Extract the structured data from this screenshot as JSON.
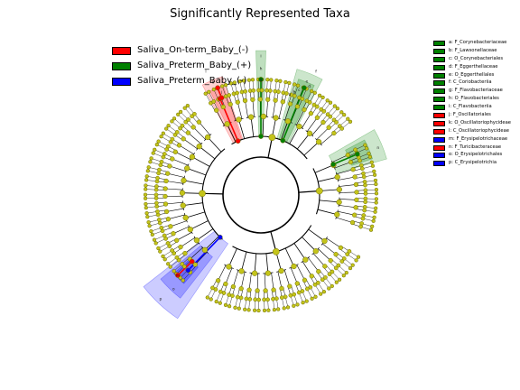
{
  "chart_data": {
    "type": "cladogram",
    "title": "Significantly Represented Taxa",
    "legend": {
      "placement": "top-left",
      "entries": [
        {
          "label": "Saliva_On-term_Baby_(-)",
          "color": "#ff0000"
        },
        {
          "label": "Saliva_Preterm_Baby_(+)",
          "color": "#008000"
        },
        {
          "label": "Saliva_Preterm_Baby_(-)",
          "color": "#0000ff"
        }
      ]
    },
    "taxa_key": [
      {
        "letter": "a",
        "text": "a: F_Corynebacteriaceae",
        "group": "Saliva_Preterm_Baby_(+)",
        "color": "#008000"
      },
      {
        "letter": "b",
        "text": "b: F_Lawsonellaceae",
        "group": "Saliva_Preterm_Baby_(+)",
        "color": "#008000"
      },
      {
        "letter": "c",
        "text": "c: O_Corynebacteriales",
        "group": "Saliva_Preterm_Baby_(+)",
        "color": "#008000"
      },
      {
        "letter": "d",
        "text": "d: F_Eggerthellaceae",
        "group": "Saliva_Preterm_Baby_(+)",
        "color": "#008000"
      },
      {
        "letter": "e",
        "text": "e: O_Eggerthellales",
        "group": "Saliva_Preterm_Baby_(+)",
        "color": "#008000"
      },
      {
        "letter": "f",
        "text": "f: C_Coriobacteriia",
        "group": "Saliva_Preterm_Baby_(+)",
        "color": "#008000"
      },
      {
        "letter": "g",
        "text": "g: F_Flavobacteriaceae",
        "group": "Saliva_Preterm_Baby_(+)",
        "color": "#008000"
      },
      {
        "letter": "h",
        "text": "h: O_Flavobacteriales",
        "group": "Saliva_Preterm_Baby_(+)",
        "color": "#008000"
      },
      {
        "letter": "i",
        "text": "i: C_Flavobacteriia",
        "group": "Saliva_Preterm_Baby_(+)",
        "color": "#008000"
      },
      {
        "letter": "j",
        "text": "j: F_Oscillatoriales",
        "group": "Saliva_On-term_Baby_(-)",
        "color": "#ff0000"
      },
      {
        "letter": "k",
        "text": "k: O_Oscillatoriophycideae",
        "group": "Saliva_On-term_Baby_(-)",
        "color": "#ff0000"
      },
      {
        "letter": "l",
        "text": "l: C_Oscillatoriophycideae",
        "group": "Saliva_On-term_Baby_(-)",
        "color": "#ff0000"
      },
      {
        "letter": "m",
        "text": "m: F_Erysipelotrichaceae",
        "group": "Saliva_Preterm_Baby_(-)",
        "color": "#0000ff"
      },
      {
        "letter": "n",
        "text": "n: F_Turicibacteraceae",
        "group": "Saliva_On-term_Baby_(-)",
        "color": "#ff0000"
      },
      {
        "letter": "o",
        "text": "o: O_Erysipelotrichales",
        "group": "Saliva_Preterm_Baby_(-)",
        "color": "#0000ff"
      },
      {
        "letter": "p",
        "text": "p: C_Erysipelotrichia",
        "group": "Saliva_Preterm_Baby_(-)",
        "color": "#0000ff"
      }
    ],
    "clade_labels": [
      "i",
      "h",
      "g",
      "f",
      "e",
      "c",
      "d",
      "b",
      "a",
      "l",
      "k",
      "j",
      "p",
      "o",
      "m",
      "n"
    ],
    "colors": {
      "node": "#c4c41a",
      "node_edge": "#6b6b00",
      "branch": "#000000",
      "onterm_neg": "#ff0000",
      "preterm_pos": "#008000",
      "preterm_neg": "#0000ff"
    }
  }
}
